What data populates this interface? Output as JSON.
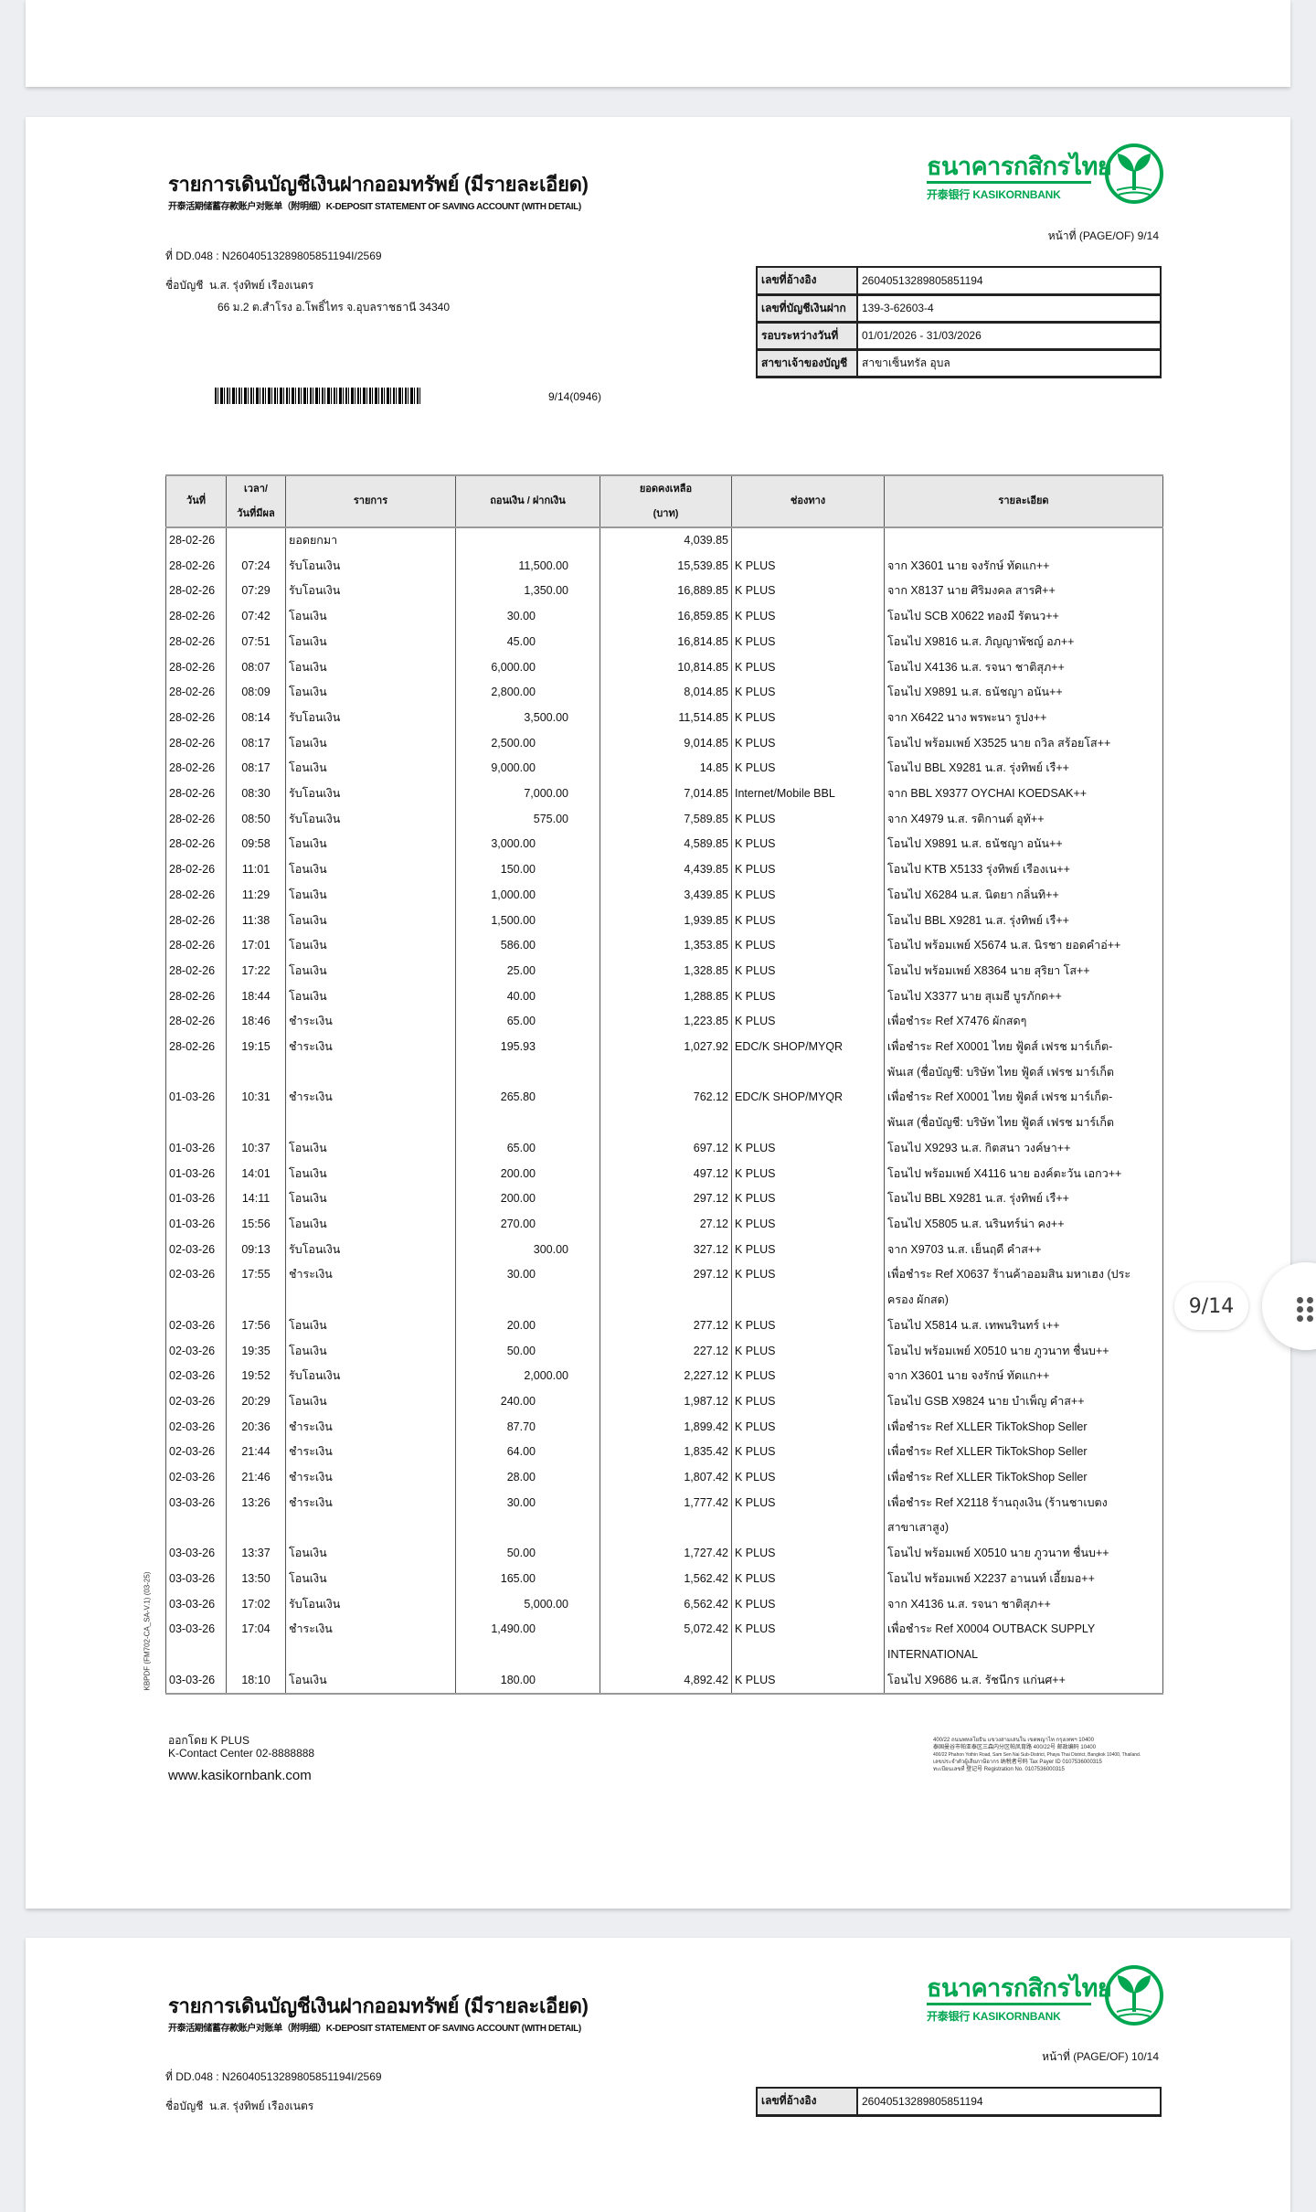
{
  "doc": {
    "title": "รายการเดินบัญชีเงินฝากออมทรัพย์ (มีรายละเอียด)",
    "subtitle": "开泰活期储蓄存款账户对账单（附明细）K-DEPOSIT STATEMENT OF SAVING ACCOUNT (WITH DETAIL)",
    "logo_th": "ธนาคารกสิกรไทย",
    "logo_en": "开泰银行 KASIKORNBANK",
    "page_label": "หน้าที่ (PAGE/OF) 9/14",
    "dd_ref": "ที่ DD.048 : N26040513289805851194I/2569",
    "account_name_label": "ชื่อบัญชี",
    "account_name": "น.ส. รุ่งทิพย์ เรืองเนตร",
    "address": "66 ม.2 ต.สำโรง อ.โพธิ์ไทร จ.อุบลราชธานี 34340",
    "barcode_text": "9/14(0946)",
    "info": [
      {
        "label": "เลขที่อ้างอิง",
        "value": "26040513289805851194"
      },
      {
        "label": "เลขที่บัญชีเงินฝาก",
        "value": "139-3-62603-4"
      },
      {
        "label": "รอบระหว่างวันที่",
        "value": "01/01/2026 - 31/03/2026"
      },
      {
        "label": "สาขาเจ้าของบัญชี",
        "value": "สาขาเซ็นทรัล อุบล"
      }
    ],
    "headers": {
      "date": "วันที่",
      "time_line1": "เวลา/",
      "time_line2": "วันที่มีผล",
      "type": "รายการ",
      "amount": "ถอนเงิน / ฝากเงิน",
      "balance_line1": "ยอดคงเหลือ",
      "balance_line2": "(บาท)",
      "channel": "ช่องทาง",
      "detail": "รายละเอียด"
    },
    "rows": [
      {
        "date": "28-02-26",
        "time": "",
        "type": "ยอดยกมา",
        "withdraw": "",
        "deposit": "",
        "balance": "4,039.85",
        "channel": "",
        "detail": [
          ""
        ]
      },
      {
        "date": "28-02-26",
        "time": "07:24",
        "type": "รับโอนเงิน",
        "withdraw": "",
        "deposit": "11,500.00",
        "balance": "15,539.85",
        "channel": "K PLUS",
        "detail": [
          "จาก X3601 นาย จงรักษ์ ทัดแก++"
        ]
      },
      {
        "date": "28-02-26",
        "time": "07:29",
        "type": "รับโอนเงิน",
        "withdraw": "",
        "deposit": "1,350.00",
        "balance": "16,889.85",
        "channel": "K PLUS",
        "detail": [
          "จาก X8137 นาย ศิริมงคล สารศิ++"
        ]
      },
      {
        "date": "28-02-26",
        "time": "07:42",
        "type": "โอนเงิน",
        "withdraw": "30.00",
        "deposit": "",
        "balance": "16,859.85",
        "channel": "K PLUS",
        "detail": [
          "โอนไป SCB X0622 ทองมี รัตนว++"
        ]
      },
      {
        "date": "28-02-26",
        "time": "07:51",
        "type": "โอนเงิน",
        "withdraw": "45.00",
        "deposit": "",
        "balance": "16,814.85",
        "channel": "K PLUS",
        "detail": [
          "โอนไป X9816 น.ส. ภิญญาพัชญ์ อภ++"
        ]
      },
      {
        "date": "28-02-26",
        "time": "08:07",
        "type": "โอนเงิน",
        "withdraw": "6,000.00",
        "deposit": "",
        "balance": "10,814.85",
        "channel": "K PLUS",
        "detail": [
          "โอนไป X4136 น.ส. รจนา ชาติสุภ++"
        ]
      },
      {
        "date": "28-02-26",
        "time": "08:09",
        "type": "โอนเงิน",
        "withdraw": "2,800.00",
        "deposit": "",
        "balance": "8,014.85",
        "channel": "K PLUS",
        "detail": [
          "โอนไป X9891 น.ส. ธนัชญา อนัน++"
        ]
      },
      {
        "date": "28-02-26",
        "time": "08:14",
        "type": "รับโอนเงิน",
        "withdraw": "",
        "deposit": "3,500.00",
        "balance": "11,514.85",
        "channel": "K PLUS",
        "detail": [
          "จาก X6422 นาง พรพะนา รูปง++"
        ]
      },
      {
        "date": "28-02-26",
        "time": "08:17",
        "type": "โอนเงิน",
        "withdraw": "2,500.00",
        "deposit": "",
        "balance": "9,014.85",
        "channel": "K PLUS",
        "detail": [
          "โอนไป พร้อมเพย์ X3525 นาย ถวิล สร้อยโส++"
        ]
      },
      {
        "date": "28-02-26",
        "time": "08:17",
        "type": "โอนเงิน",
        "withdraw": "9,000.00",
        "deposit": "",
        "balance": "14.85",
        "channel": "K PLUS",
        "detail": [
          "โอนไป BBL X9281 น.ส. รุ่งทิพย์ เรื++"
        ]
      },
      {
        "date": "28-02-26",
        "time": "08:30",
        "type": "รับโอนเงิน",
        "withdraw": "",
        "deposit": "7,000.00",
        "balance": "7,014.85",
        "channel": "Internet/Mobile BBL",
        "detail": [
          "จาก BBL X9377 OYCHAI KOEDSAK++"
        ]
      },
      {
        "date": "28-02-26",
        "time": "08:50",
        "type": "รับโอนเงิน",
        "withdraw": "",
        "deposit": "575.00",
        "balance": "7,589.85",
        "channel": "K PLUS",
        "detail": [
          "จาก X4979 น.ส. รติกานต์ อุทั++"
        ]
      },
      {
        "date": "28-02-26",
        "time": "09:58",
        "type": "โอนเงิน",
        "withdraw": "3,000.00",
        "deposit": "",
        "balance": "4,589.85",
        "channel": "K PLUS",
        "detail": [
          "โอนไป X9891 น.ส. ธนัชญา อนัน++"
        ]
      },
      {
        "date": "28-02-26",
        "time": "11:01",
        "type": "โอนเงิน",
        "withdraw": "150.00",
        "deposit": "",
        "balance": "4,439.85",
        "channel": "K PLUS",
        "detail": [
          "โอนไป KTB X5133 รุ่งทิพย์ เรืองเน++"
        ]
      },
      {
        "date": "28-02-26",
        "time": "11:29",
        "type": "โอนเงิน",
        "withdraw": "1,000.00",
        "deposit": "",
        "balance": "3,439.85",
        "channel": "K PLUS",
        "detail": [
          "โอนไป X6284 น.ส. นิตยา กลิ่นทิ++"
        ]
      },
      {
        "date": "28-02-26",
        "time": "11:38",
        "type": "โอนเงิน",
        "withdraw": "1,500.00",
        "deposit": "",
        "balance": "1,939.85",
        "channel": "K PLUS",
        "detail": [
          "โอนไป BBL X9281 น.ส. รุ่งทิพย์ เรื++"
        ]
      },
      {
        "date": "28-02-26",
        "time": "17:01",
        "type": "โอนเงิน",
        "withdraw": "586.00",
        "deposit": "",
        "balance": "1,353.85",
        "channel": "K PLUS",
        "detail": [
          "โอนไป พร้อมเพย์ X5674 น.ส. นิรชา ยอดคำอ่++"
        ]
      },
      {
        "date": "28-02-26",
        "time": "17:22",
        "type": "โอนเงิน",
        "withdraw": "25.00",
        "deposit": "",
        "balance": "1,328.85",
        "channel": "K PLUS",
        "detail": [
          "โอนไป พร้อมเพย์ X8364 นาย สุริยา โส++"
        ]
      },
      {
        "date": "28-02-26",
        "time": "18:44",
        "type": "โอนเงิน",
        "withdraw": "40.00",
        "deposit": "",
        "balance": "1,288.85",
        "channel": "K PLUS",
        "detail": [
          "โอนไป X3377 นาย สุเมธี บูรภักด++"
        ]
      },
      {
        "date": "28-02-26",
        "time": "18:46",
        "type": "ชำระเงิน",
        "withdraw": "65.00",
        "deposit": "",
        "balance": "1,223.85",
        "channel": "K PLUS",
        "detail": [
          "เพื่อชำระ Ref X7476 ผักสดๆ"
        ]
      },
      {
        "date": "28-02-26",
        "time": "19:15",
        "type": "ชำระเงิน",
        "withdraw": "195.93",
        "deposit": "",
        "balance": "1,027.92",
        "channel": "EDC/K SHOP/MYQR",
        "detail": [
          "เพื่อชำระ Ref X0001 ไทย ฟู้ดส์ เฟรช มาร์เก็ต-",
          "พันเส (ชื่อบัญชี: บริษัท ไทย ฟู้ดส์ เฟรช มาร์เก็ต"
        ]
      },
      {
        "date": "01-03-26",
        "time": "10:31",
        "type": "ชำระเงิน",
        "withdraw": "265.80",
        "deposit": "",
        "balance": "762.12",
        "channel": "EDC/K SHOP/MYQR",
        "detail": [
          "เพื่อชำระ Ref X0001 ไทย ฟู้ดส์ เฟรช มาร์เก็ต-",
          "พันเส (ชื่อบัญชี: บริษัท ไทย ฟู้ดส์ เฟรช มาร์เก็ต"
        ]
      },
      {
        "date": "01-03-26",
        "time": "10:37",
        "type": "โอนเงิน",
        "withdraw": "65.00",
        "deposit": "",
        "balance": "697.12",
        "channel": "K PLUS",
        "detail": [
          "โอนไป X9293 น.ส. กิตสนา วงค์ษา++"
        ]
      },
      {
        "date": "01-03-26",
        "time": "14:01",
        "type": "โอนเงิน",
        "withdraw": "200.00",
        "deposit": "",
        "balance": "497.12",
        "channel": "K PLUS",
        "detail": [
          "โอนไป พร้อมเพย์ X4116 นาย องค์ตะวัน เอกว++"
        ]
      },
      {
        "date": "01-03-26",
        "time": "14:11",
        "type": "โอนเงิน",
        "withdraw": "200.00",
        "deposit": "",
        "balance": "297.12",
        "channel": "K PLUS",
        "detail": [
          "โอนไป BBL X9281 น.ส. รุ่งทิพย์ เรื++"
        ]
      },
      {
        "date": "01-03-26",
        "time": "15:56",
        "type": "โอนเงิน",
        "withdraw": "270.00",
        "deposit": "",
        "balance": "27.12",
        "channel": "K PLUS",
        "detail": [
          "โอนไป X5805 น.ส. นรินทร์น่า คง++"
        ]
      },
      {
        "date": "02-03-26",
        "time": "09:13",
        "type": "รับโอนเงิน",
        "withdraw": "",
        "deposit": "300.00",
        "balance": "327.12",
        "channel": "K PLUS",
        "detail": [
          "จาก X9703 น.ส. เย็นฤดี คำส++"
        ]
      },
      {
        "date": "02-03-26",
        "time": "17:55",
        "type": "ชำระเงิน",
        "withdraw": "30.00",
        "deposit": "",
        "balance": "297.12",
        "channel": "K PLUS",
        "detail": [
          "เพื่อชำระ Ref X0637 ร้านค้าออมสิน มหาเฮง (ประ",
          "ครอง ผักสด)"
        ]
      },
      {
        "date": "02-03-26",
        "time": "17:56",
        "type": "โอนเงิน",
        "withdraw": "20.00",
        "deposit": "",
        "balance": "277.12",
        "channel": "K PLUS",
        "detail": [
          "โอนไป X5814 น.ส. เทพนรินทร์  เ++"
        ]
      },
      {
        "date": "02-03-26",
        "time": "19:35",
        "type": "โอนเงิน",
        "withdraw": "50.00",
        "deposit": "",
        "balance": "227.12",
        "channel": "K PLUS",
        "detail": [
          "โอนไป พร้อมเพย์ X0510 นาย ภูวนาท ชื่นบ++"
        ]
      },
      {
        "date": "02-03-26",
        "time": "19:52",
        "type": "รับโอนเงิน",
        "withdraw": "",
        "deposit": "2,000.00",
        "balance": "2,227.12",
        "channel": "K PLUS",
        "detail": [
          "จาก X3601 นาย จงรักษ์ ทัดแก++"
        ]
      },
      {
        "date": "02-03-26",
        "time": "20:29",
        "type": "โอนเงิน",
        "withdraw": "240.00",
        "deposit": "",
        "balance": "1,987.12",
        "channel": "K PLUS",
        "detail": [
          "โอนไป GSB X9824 นาย บำเพ็ญ คำส++"
        ]
      },
      {
        "date": "02-03-26",
        "time": "20:36",
        "type": "ชำระเงิน",
        "withdraw": "87.70",
        "deposit": "",
        "balance": "1,899.42",
        "channel": "K PLUS",
        "detail": [
          "เพื่อชำระ Ref XLLER TikTokShop Seller"
        ]
      },
      {
        "date": "02-03-26",
        "time": "21:44",
        "type": "ชำระเงิน",
        "withdraw": "64.00",
        "deposit": "",
        "balance": "1,835.42",
        "channel": "K PLUS",
        "detail": [
          "เพื่อชำระ Ref XLLER TikTokShop Seller"
        ]
      },
      {
        "date": "02-03-26",
        "time": "21:46",
        "type": "ชำระเงิน",
        "withdraw": "28.00",
        "deposit": "",
        "balance": "1,807.42",
        "channel": "K PLUS",
        "detail": [
          "เพื่อชำระ Ref XLLER TikTokShop Seller"
        ]
      },
      {
        "date": "03-03-26",
        "time": "13:26",
        "type": "ชำระเงิน",
        "withdraw": "30.00",
        "deposit": "",
        "balance": "1,777.42",
        "channel": "K PLUS",
        "detail": [
          "เพื่อชำระ Ref X2118 ร้านถุงเงิน (ร้านชาเบตง",
          "สาขาเสาสูง)"
        ]
      },
      {
        "date": "03-03-26",
        "time": "13:37",
        "type": "โอนเงิน",
        "withdraw": "50.00",
        "deposit": "",
        "balance": "1,727.42",
        "channel": "K PLUS",
        "detail": [
          "โอนไป พร้อมเพย์ X0510 นาย ภูวนาท ชื่นบ++"
        ]
      },
      {
        "date": "03-03-26",
        "time": "13:50",
        "type": "โอนเงิน",
        "withdraw": "165.00",
        "deposit": "",
        "balance": "1,562.42",
        "channel": "K PLUS",
        "detail": [
          "โอนไป พร้อมเพย์ X2237 อานนท์ เอี้ยมอ++"
        ]
      },
      {
        "date": "03-03-26",
        "time": "17:02",
        "type": "รับโอนเงิน",
        "withdraw": "",
        "deposit": "5,000.00",
        "balance": "6,562.42",
        "channel": "K PLUS",
        "detail": [
          "จาก X4136 น.ส. รจนา ชาติสุภ++"
        ]
      },
      {
        "date": "03-03-26",
        "time": "17:04",
        "type": "ชำระเงิน",
        "withdraw": "1,490.00",
        "deposit": "",
        "balance": "5,072.42",
        "channel": "K PLUS",
        "detail": [
          "เพื่อชำระ Ref X0004 OUTBACK SUPPLY",
          "INTERNATIONAL"
        ]
      },
      {
        "date": "03-03-26",
        "time": "18:10",
        "type": "โอนเงิน",
        "withdraw": "180.00",
        "deposit": "",
        "balance": "4,892.42",
        "channel": "K PLUS",
        "detail": [
          "โอนไป X9686 น.ส. รัชนีกร แก่นศ++"
        ]
      }
    ],
    "side_code": "KBPDF (FM702-CA_SA-V.1) (03-25)",
    "footer": {
      "issued_by": "ออกโดย K PLUS",
      "contact": "K-Contact Center 02-8888888",
      "website": "www.kasikornbank.com",
      "address_lines": [
        "400/22 ถนนพหลโยธิน แขวงสามเสนใน เขตพญาไท กรุงเทพฯ 10400",
        "泰国曼谷市帕亚泰区三森内分区帕凤育路 400/22号 邮政编码 10400",
        "400/22 Phahon Yothin Road, Sam Sen Nai Sub-District, Phaya Thai District, Bangkok 10400, Thailand.",
        "เลขประจำตัวผู้เสียภาษีอากร 纳税者号码 Tax Payer ID 0107536000315",
        "ทะเบียนเลขที่ 登记号 Registration No. 0107536000315"
      ]
    }
  },
  "next_page": {
    "page_label": "หน้าที่ (PAGE/OF) 10/14"
  },
  "viewer": {
    "page_indicator": "9/14",
    "menu_icon": "grid-dots-icon"
  },
  "colors": {
    "brand_green": "#00a650",
    "background": "#eceef1"
  }
}
